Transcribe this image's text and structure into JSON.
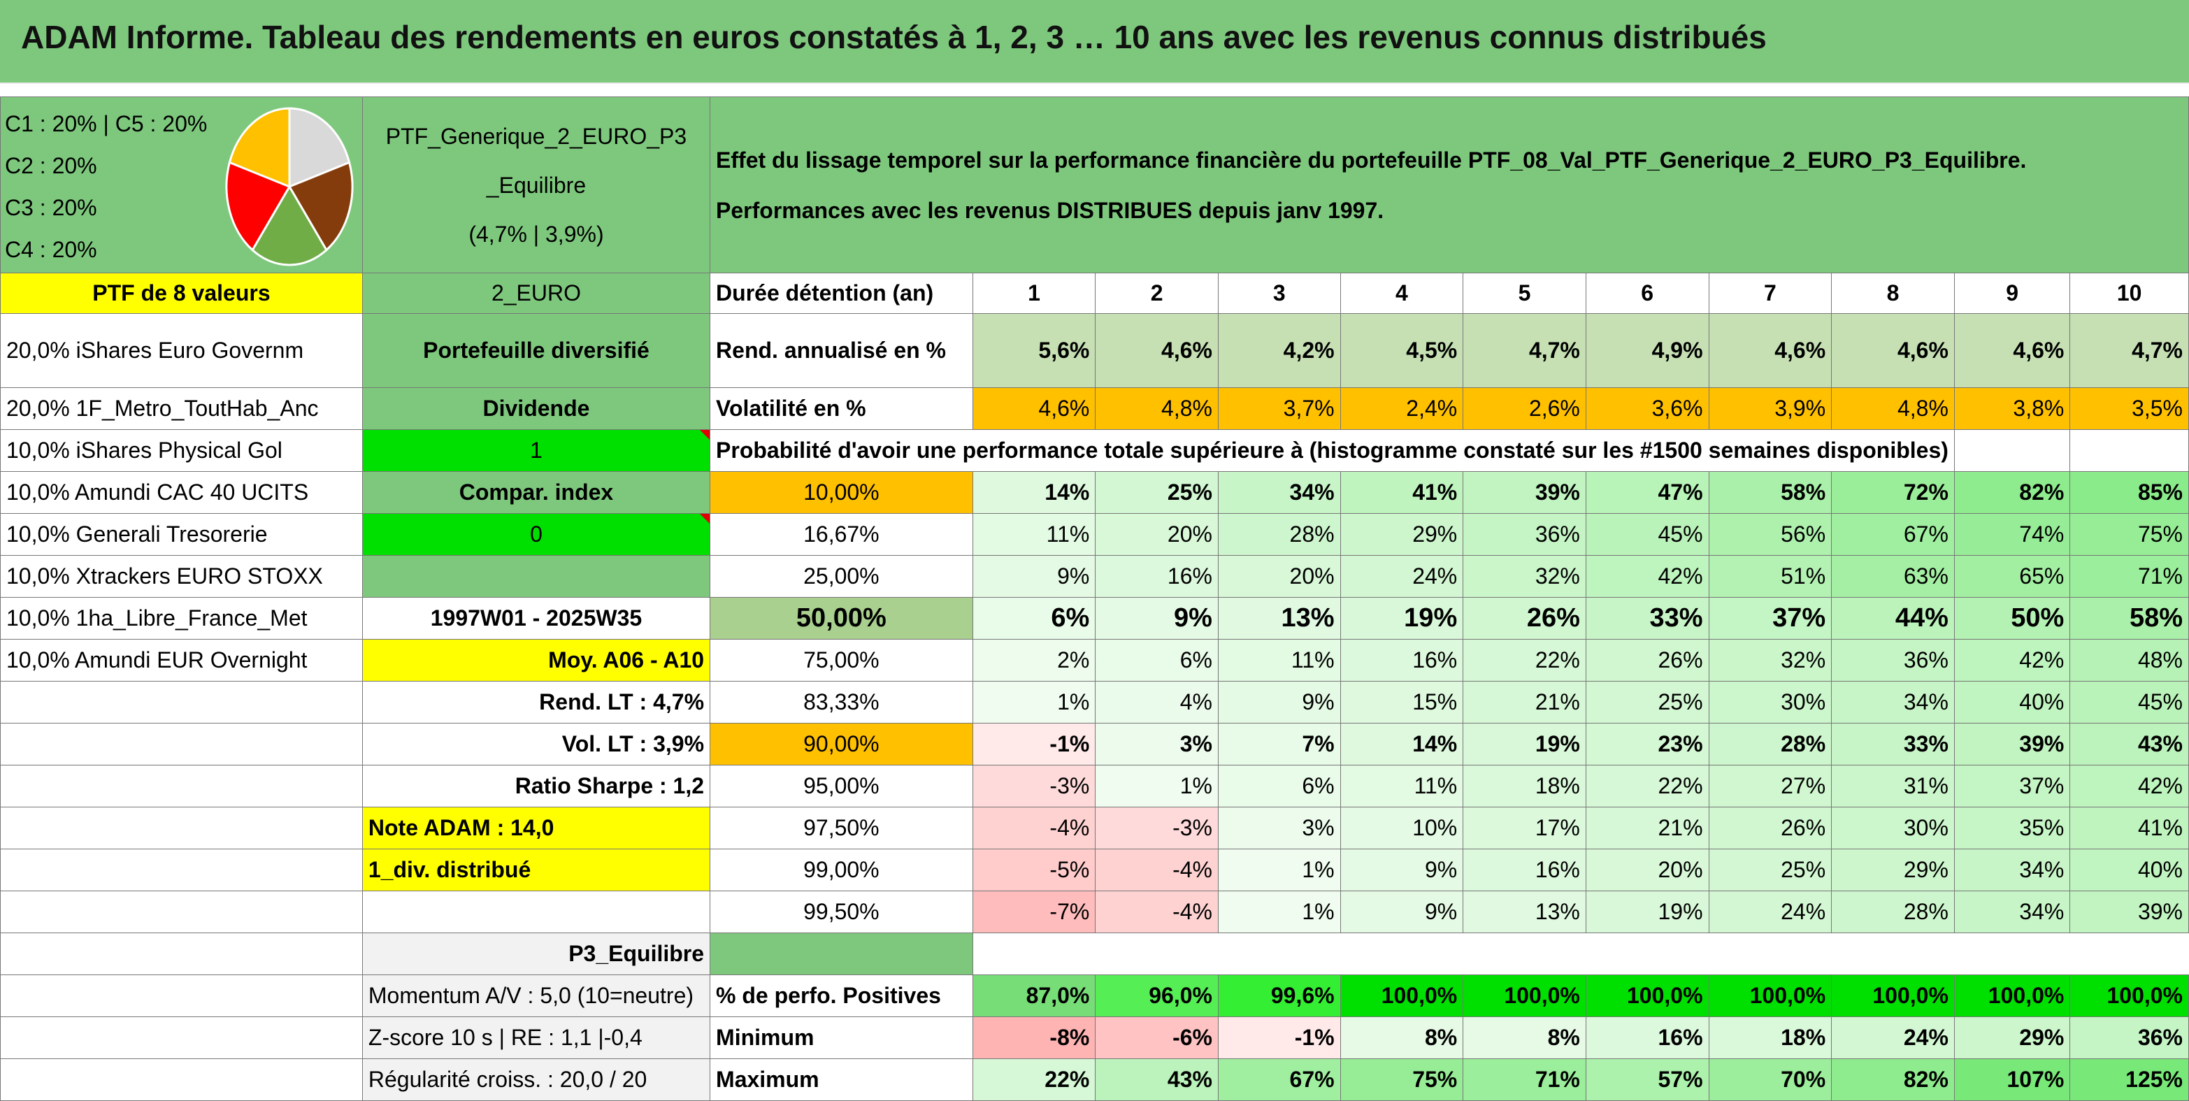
{
  "title": "ADAM Informe. Tableau des rendements en euros constatés à 1, 2, 3 … 10 ans avec les revenus connus distribués",
  "allocation": [
    "C1 : 20% | C5 : 20%",
    "C2 : 20%",
    "C3 : 20%",
    "C4 : 20%"
  ],
  "pie": [
    {
      "label": "C1",
      "value": 20,
      "color": "#d9d9d9"
    },
    {
      "label": "C2",
      "value": 20,
      "color": "#843c0c"
    },
    {
      "label": "C3",
      "value": 20,
      "color": "#70ad47"
    },
    {
      "label": "C4",
      "value": 20,
      "color": "#ff0000"
    },
    {
      "label": "C5",
      "value": 20,
      "color": "#ffc000"
    }
  ],
  "ptf_name": [
    "PTF_Generique_2_EURO_P3",
    "_Equilibre",
    "(4,7% | 3,9%)"
  ],
  "description": [
    "Effet du lissage temporel sur la performance financière du portefeuille PTF_08_Val_PTF_Generique_2_EURO_P3_Equilibre.",
    "Performances avec les revenus DISTRIBUES depuis janv 1997."
  ],
  "left_col": {
    "header": "PTF de 8 valeurs",
    "holdings": [
      "20,0% iShares Euro Governm",
      "20,0% 1F_Metro_ToutHab_Anc",
      "10,0% iShares Physical Gol",
      "10,0% Amundi CAC 40 UCITS",
      "10,0% Generali Tresorerie",
      "10,0% Xtrackers EURO STOXX",
      "10,0% 1ha_Libre_France_Met",
      "10,0% Amundi EUR Overnight"
    ]
  },
  "mid_col": {
    "currency": "2_EURO",
    "type": "Portefeuille diversifié",
    "dividend_label": "Dividende",
    "dividend_value": "1",
    "compar_label": "Compar. index",
    "compar_value": "0",
    "period": "1997W01 - 2025W35",
    "moy": "Moy. A06 - A10",
    "rend_lt": "Rend. LT : 4,7%",
    "vol_lt": "Vol. LT : 3,9%",
    "sharpe": "Ratio Sharpe : 1,2",
    "note": "Note ADAM : 14,0",
    "div": "1_div. distribué",
    "profile": "P3_Equilibre",
    "momentum": "Momentum A/V : 5,0 (10=neutre)",
    "zscore": "Z-score 10 s | RE : 1,1 |-0,4",
    "regularite": "Régularité croiss. : 20,0 / 20"
  },
  "table": {
    "duration_label": "Durée détention (an)",
    "years": [
      "1",
      "2",
      "3",
      "4",
      "5",
      "6",
      "7",
      "8",
      "9",
      "10"
    ],
    "rend_label": "Rend. annualisé en %",
    "rend": [
      "5,6%",
      "4,6%",
      "4,2%",
      "4,5%",
      "4,7%",
      "4,9%",
      "4,6%",
      "4,6%",
      "4,6%",
      "4,7%"
    ],
    "vol_label": "Volatilité en %",
    "vol": [
      "4,6%",
      "4,8%",
      "3,7%",
      "2,4%",
      "2,6%",
      "3,6%",
      "3,9%",
      "4,8%",
      "3,8%",
      "3,5%"
    ],
    "proba_label": "Probabilité d'avoir une performance totale supérieure à (histogramme constaté sur les #1500 semaines disponibles)",
    "quantiles": [
      {
        "q": "10,00%",
        "v": [
          "14%",
          "25%",
          "34%",
          "41%",
          "39%",
          "47%",
          "58%",
          "72%",
          "82%",
          "85%"
        ]
      },
      {
        "q": "16,67%",
        "v": [
          "11%",
          "20%",
          "28%",
          "29%",
          "36%",
          "45%",
          "56%",
          "67%",
          "74%",
          "75%"
        ]
      },
      {
        "q": "25,00%",
        "v": [
          "9%",
          "16%",
          "20%",
          "24%",
          "32%",
          "42%",
          "51%",
          "63%",
          "65%",
          "71%"
        ]
      },
      {
        "q": "50,00%",
        "v": [
          "6%",
          "9%",
          "13%",
          "19%",
          "26%",
          "33%",
          "37%",
          "44%",
          "50%",
          "58%"
        ]
      },
      {
        "q": "75,00%",
        "v": [
          "2%",
          "6%",
          "11%",
          "16%",
          "22%",
          "26%",
          "32%",
          "36%",
          "42%",
          "48%"
        ]
      },
      {
        "q": "83,33%",
        "v": [
          "1%",
          "4%",
          "9%",
          "15%",
          "21%",
          "25%",
          "30%",
          "34%",
          "40%",
          "45%"
        ]
      },
      {
        "q": "90,00%",
        "v": [
          "-1%",
          "3%",
          "7%",
          "14%",
          "19%",
          "23%",
          "28%",
          "33%",
          "39%",
          "43%"
        ]
      },
      {
        "q": "95,00%",
        "v": [
          "-3%",
          "1%",
          "6%",
          "11%",
          "18%",
          "22%",
          "27%",
          "31%",
          "37%",
          "42%"
        ]
      },
      {
        "q": "97,50%",
        "v": [
          "-4%",
          "-3%",
          "3%",
          "10%",
          "17%",
          "21%",
          "26%",
          "30%",
          "35%",
          "41%"
        ]
      },
      {
        "q": "99,00%",
        "v": [
          "-5%",
          "-4%",
          "1%",
          "9%",
          "16%",
          "20%",
          "25%",
          "29%",
          "34%",
          "40%"
        ]
      },
      {
        "q": "99,50%",
        "v": [
          "-7%",
          "-4%",
          "1%",
          "9%",
          "13%",
          "19%",
          "24%",
          "28%",
          "34%",
          "39%"
        ]
      }
    ],
    "pos_label": "% de perfo. Positives",
    "pos": [
      "87,0%",
      "96,0%",
      "99,6%",
      "100,0%",
      "100,0%",
      "100,0%",
      "100,0%",
      "100,0%",
      "100,0%",
      "100,0%"
    ],
    "min_label": "Minimum",
    "min": [
      "-8%",
      "-6%",
      "-1%",
      "8%",
      "8%",
      "16%",
      "18%",
      "24%",
      "29%",
      "36%"
    ],
    "max_label": "Maximum",
    "max": [
      "22%",
      "43%",
      "67%",
      "75%",
      "71%",
      "57%",
      "70%",
      "82%",
      "107%",
      "125%"
    ]
  }
}
